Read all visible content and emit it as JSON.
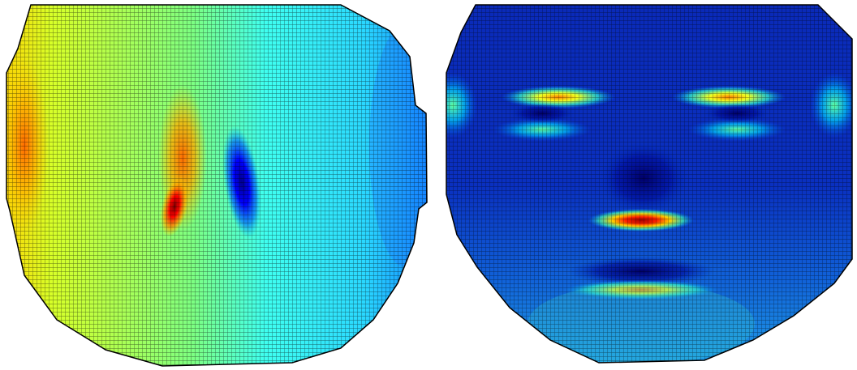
{
  "figure": {
    "panels": [
      {
        "id": "left",
        "description_key": "displacement-map",
        "colormap": "jet",
        "grid": true,
        "hotspots": [
          {
            "feature": "nose-left-ridge",
            "level": 1.0
          },
          {
            "feature": "nose-right-ridge",
            "level": 0.0
          },
          {
            "feature": "left-cheek-edge",
            "level": 0.78
          }
        ]
      },
      {
        "id": "right",
        "description_key": "strain-map",
        "colormap": "jet",
        "grid": true,
        "hotspots": [
          {
            "feature": "upper-lip",
            "level": 1.0
          },
          {
            "feature": "left-eyebrow",
            "level": 0.8
          },
          {
            "feature": "right-eyebrow",
            "level": 0.75
          },
          {
            "feature": "lower-lip",
            "level": 0.6
          }
        ]
      }
    ],
    "colors": {
      "jet_dark_blue": "#00008f",
      "jet_blue": "#0000ff",
      "jet_cyan": "#00ffff",
      "jet_yellow": "#ffff00",
      "jet_red": "#ff0000",
      "jet_dark_red": "#800000",
      "grid_line": "#000000",
      "background": "#ffffff"
    }
  }
}
